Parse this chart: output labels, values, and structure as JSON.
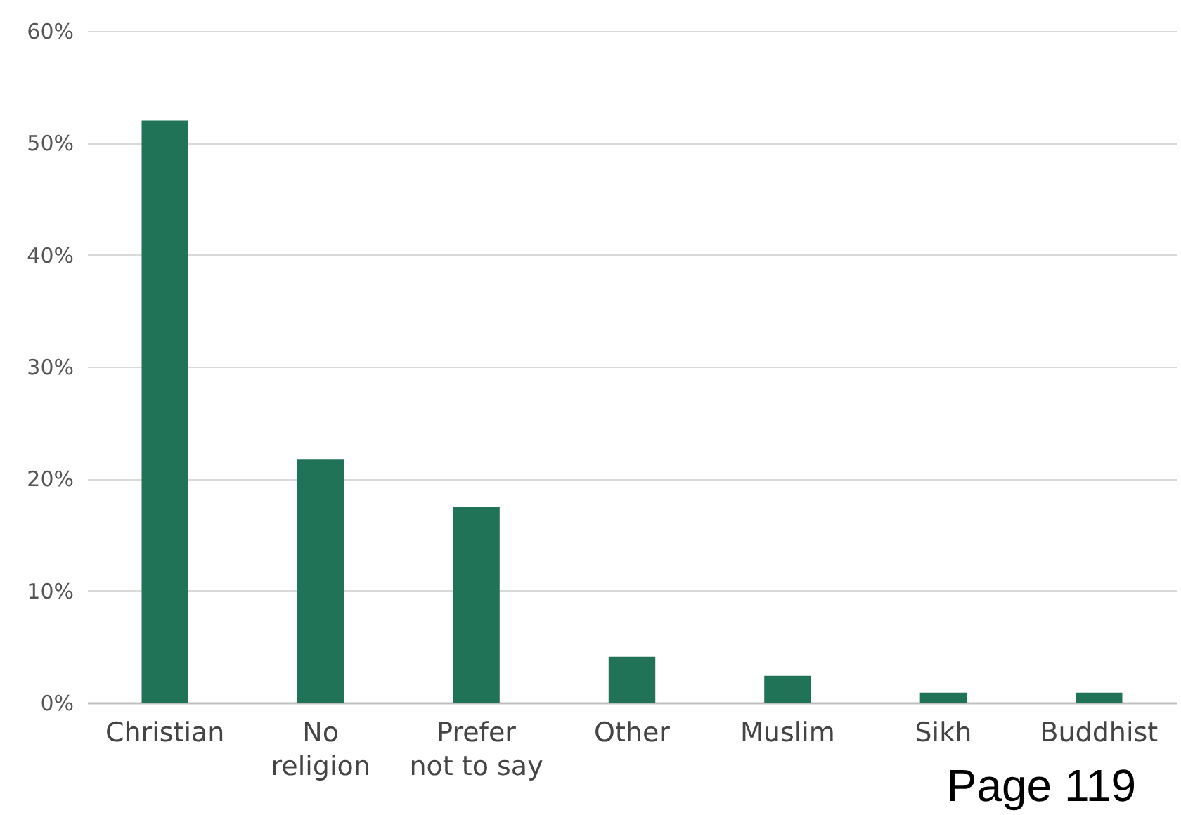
{
  "chart_data": {
    "type": "bar",
    "categories": [
      "Christian",
      "No religion",
      "Prefer not to say",
      "Other",
      "Muslim",
      "Sikh",
      "Buddhist"
    ],
    "values": [
      52,
      21.7,
      17.5,
      4.1,
      2.4,
      0.9,
      0.9
    ],
    "color": "#217358",
    "ylim": [
      0,
      60
    ],
    "yticks": [
      {
        "value": 0,
        "label": "0%"
      },
      {
        "value": 10,
        "label": "10%"
      },
      {
        "value": 20,
        "label": "20%"
      },
      {
        "value": 30,
        "label": "30%"
      },
      {
        "value": 40,
        "label": "40%"
      },
      {
        "value": 50,
        "label": "50%"
      },
      {
        "value": 60,
        "label": "60%"
      }
    ],
    "grid": "y",
    "annotations": [
      "Page 119"
    ]
  }
}
